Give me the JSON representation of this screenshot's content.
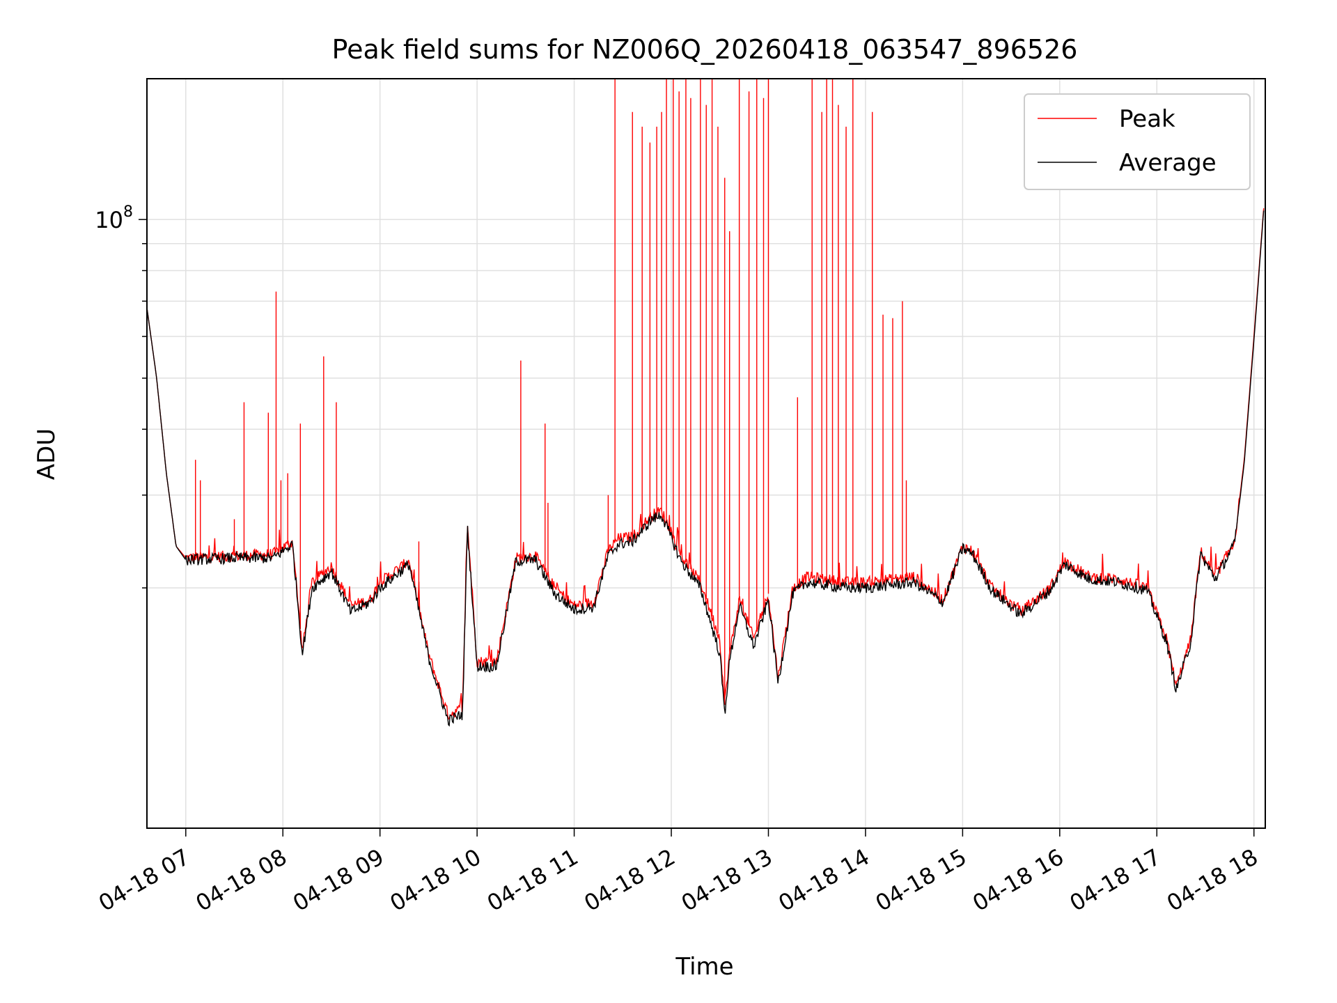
{
  "chart_data": {
    "type": "line",
    "title": "Peak field sums for NZ006Q_20260418_063547_896526",
    "xlabel": "Time",
    "ylabel": "ADU",
    "y_scale": "log",
    "xlim": [
      "04-18 06:36",
      "04-18 18:07"
    ],
    "ylim": [
      7000000,
      185000000
    ],
    "x_ticks": [
      "04-18 07",
      "04-18 08",
      "04-18 09",
      "04-18 10",
      "04-18 11",
      "04-18 12",
      "04-18 13",
      "04-18 14",
      "04-18 15",
      "04-18 16",
      "04-18 17",
      "04-18 18"
    ],
    "x_tick_hours": [
      7,
      8,
      9,
      10,
      11,
      12,
      13,
      14,
      15,
      16,
      17,
      18
    ],
    "y_ticks": [
      {
        "value": 100000000,
        "base": "10",
        "exp": "8",
        "major": true
      },
      {
        "value": 90000000,
        "major": false
      },
      {
        "value": 80000000,
        "major": false
      },
      {
        "value": 70000000,
        "major": false
      },
      {
        "value": 60000000,
        "major": false
      },
      {
        "value": 50000000,
        "major": false
      },
      {
        "value": 40000000,
        "major": false
      },
      {
        "value": 30000000,
        "major": false
      },
      {
        "value": 20000000,
        "major": false
      }
    ],
    "grid": true,
    "legend_position": "top-right",
    "series": [
      {
        "name": "Peak",
        "color": "#ff0000",
        "note_points": "hour, ADU",
        "baseline": [
          [
            6.6,
            68000000
          ],
          [
            6.7,
            50000000
          ],
          [
            6.8,
            33000000
          ],
          [
            6.9,
            24000000
          ],
          [
            7.0,
            22800000
          ],
          [
            7.5,
            23000000
          ],
          [
            7.9,
            23200000
          ],
          [
            8.1,
            24500000
          ],
          [
            8.2,
            15200000
          ],
          [
            8.3,
            20500000
          ],
          [
            8.5,
            22000000
          ],
          [
            8.7,
            18500000
          ],
          [
            8.9,
            19000000
          ],
          [
            9.0,
            20500000
          ],
          [
            9.3,
            22500000
          ],
          [
            9.5,
            15000000
          ],
          [
            9.7,
            11500000
          ],
          [
            9.85,
            11800000
          ],
          [
            9.9,
            26500000
          ],
          [
            10.0,
            14500000
          ],
          [
            10.2,
            14500000
          ],
          [
            10.4,
            22800000
          ],
          [
            10.6,
            23000000
          ],
          [
            10.8,
            20000000
          ],
          [
            11.0,
            18500000
          ],
          [
            11.2,
            18800000
          ],
          [
            11.35,
            23500000
          ],
          [
            11.45,
            24800000
          ],
          [
            11.6,
            25000000
          ],
          [
            11.8,
            27500000
          ],
          [
            11.9,
            28000000
          ],
          [
            12.1,
            23000000
          ],
          [
            12.3,
            20500000
          ],
          [
            12.5,
            16000000
          ],
          [
            12.55,
            12000000
          ],
          [
            12.6,
            15000000
          ],
          [
            12.7,
            19000000
          ],
          [
            12.85,
            16000000
          ],
          [
            13.0,
            19500000
          ],
          [
            13.1,
            13500000
          ],
          [
            13.25,
            20000000
          ],
          [
            13.4,
            21000000
          ],
          [
            13.8,
            20500000
          ],
          [
            14.0,
            20500000
          ],
          [
            14.5,
            21000000
          ],
          [
            14.8,
            19000000
          ],
          [
            15.0,
            24000000
          ],
          [
            15.1,
            23500000
          ],
          [
            15.3,
            20000000
          ],
          [
            15.6,
            18000000
          ],
          [
            15.9,
            20000000
          ],
          [
            16.05,
            22500000
          ],
          [
            16.3,
            21000000
          ],
          [
            16.6,
            20800000
          ],
          [
            16.9,
            20000000
          ],
          [
            17.1,
            16000000
          ],
          [
            17.2,
            13000000
          ],
          [
            17.35,
            16000000
          ],
          [
            17.45,
            23500000
          ],
          [
            17.6,
            21000000
          ],
          [
            17.8,
            24500000
          ],
          [
            17.9,
            35000000
          ],
          [
            18.0,
            60000000
          ],
          [
            18.1,
            105000000
          ]
        ],
        "spikes": [
          [
            7.1,
            35000000
          ],
          [
            7.15,
            32000000
          ],
          [
            7.5,
            27000000
          ],
          [
            7.6,
            45000000
          ],
          [
            7.85,
            43000000
          ],
          [
            7.93,
            73000000
          ],
          [
            7.98,
            32000000
          ],
          [
            8.05,
            33000000
          ],
          [
            8.18,
            41000000
          ],
          [
            8.42,
            55000000
          ],
          [
            8.55,
            45000000
          ],
          [
            9.4,
            24500000
          ],
          [
            10.45,
            54000000
          ],
          [
            10.7,
            41000000
          ],
          [
            10.73,
            29000000
          ],
          [
            11.35,
            30000000
          ],
          [
            11.42,
            185000000
          ],
          [
            11.6,
            160000000
          ],
          [
            11.7,
            150000000
          ],
          [
            11.78,
            140000000
          ],
          [
            11.85,
            150000000
          ],
          [
            11.9,
            160000000
          ],
          [
            11.95,
            185000000
          ],
          [
            12.02,
            185000000
          ],
          [
            12.08,
            175000000
          ],
          [
            12.15,
            185000000
          ],
          [
            12.2,
            170000000
          ],
          [
            12.3,
            185000000
          ],
          [
            12.36,
            165000000
          ],
          [
            12.42,
            185000000
          ],
          [
            12.48,
            150000000
          ],
          [
            12.55,
            120000000
          ],
          [
            12.6,
            95000000
          ],
          [
            12.7,
            185000000
          ],
          [
            12.8,
            175000000
          ],
          [
            12.88,
            185000000
          ],
          [
            12.95,
            170000000
          ],
          [
            13.0,
            185000000
          ],
          [
            13.3,
            46000000
          ],
          [
            13.45,
            185000000
          ],
          [
            13.55,
            160000000
          ],
          [
            13.6,
            185000000
          ],
          [
            13.66,
            185000000
          ],
          [
            13.72,
            165000000
          ],
          [
            13.8,
            150000000
          ],
          [
            13.87,
            185000000
          ],
          [
            14.07,
            160000000
          ],
          [
            14.18,
            66000000
          ],
          [
            14.28,
            65000000
          ],
          [
            14.38,
            70000000
          ],
          [
            14.42,
            32000000
          ]
        ]
      },
      {
        "name": "Average",
        "color": "#000000",
        "note_points": "hour, ADU",
        "baseline": [
          [
            6.6,
            68000000
          ],
          [
            6.7,
            50000000
          ],
          [
            6.8,
            33000000
          ],
          [
            6.9,
            24000000
          ],
          [
            7.0,
            22600000
          ],
          [
            7.5,
            22800000
          ],
          [
            7.9,
            22800000
          ],
          [
            8.1,
            24200000
          ],
          [
            8.2,
            15000000
          ],
          [
            8.3,
            20000000
          ],
          [
            8.5,
            21500000
          ],
          [
            8.7,
            18000000
          ],
          [
            8.9,
            18800000
          ],
          [
            9.0,
            20000000
          ],
          [
            9.3,
            22200000
          ],
          [
            9.5,
            14800000
          ],
          [
            9.7,
            11200000
          ],
          [
            9.85,
            11500000
          ],
          [
            9.9,
            26000000
          ],
          [
            10.0,
            14200000
          ],
          [
            10.2,
            14200000
          ],
          [
            10.4,
            22500000
          ],
          [
            10.6,
            22600000
          ],
          [
            10.8,
            19500000
          ],
          [
            11.0,
            18200000
          ],
          [
            11.2,
            18400000
          ],
          [
            11.35,
            23000000
          ],
          [
            11.45,
            24200000
          ],
          [
            11.6,
            24500000
          ],
          [
            11.8,
            27000000
          ],
          [
            11.9,
            27500000
          ],
          [
            12.1,
            22500000
          ],
          [
            12.3,
            20000000
          ],
          [
            12.5,
            15000000
          ],
          [
            12.55,
            11500000
          ],
          [
            12.6,
            14500000
          ],
          [
            12.7,
            18500000
          ],
          [
            12.85,
            15500000
          ],
          [
            13.0,
            19000000
          ],
          [
            13.1,
            13200000
          ],
          [
            13.25,
            19500000
          ],
          [
            13.4,
            20500000
          ],
          [
            13.8,
            20000000
          ],
          [
            14.0,
            20000000
          ],
          [
            14.5,
            20500000
          ],
          [
            14.8,
            18800000
          ],
          [
            15.0,
            23800000
          ],
          [
            15.1,
            23200000
          ],
          [
            15.3,
            19800000
          ],
          [
            15.6,
            17800000
          ],
          [
            15.9,
            19800000
          ],
          [
            16.05,
            22200000
          ],
          [
            16.3,
            20800000
          ],
          [
            16.6,
            20500000
          ],
          [
            16.9,
            19800000
          ],
          [
            17.1,
            15800000
          ],
          [
            17.2,
            12800000
          ],
          [
            17.35,
            15800000
          ],
          [
            17.45,
            23200000
          ],
          [
            17.6,
            20800000
          ],
          [
            17.8,
            24200000
          ],
          [
            17.9,
            34500000
          ],
          [
            18.0,
            59000000
          ],
          [
            18.1,
            104000000
          ]
        ]
      }
    ]
  }
}
